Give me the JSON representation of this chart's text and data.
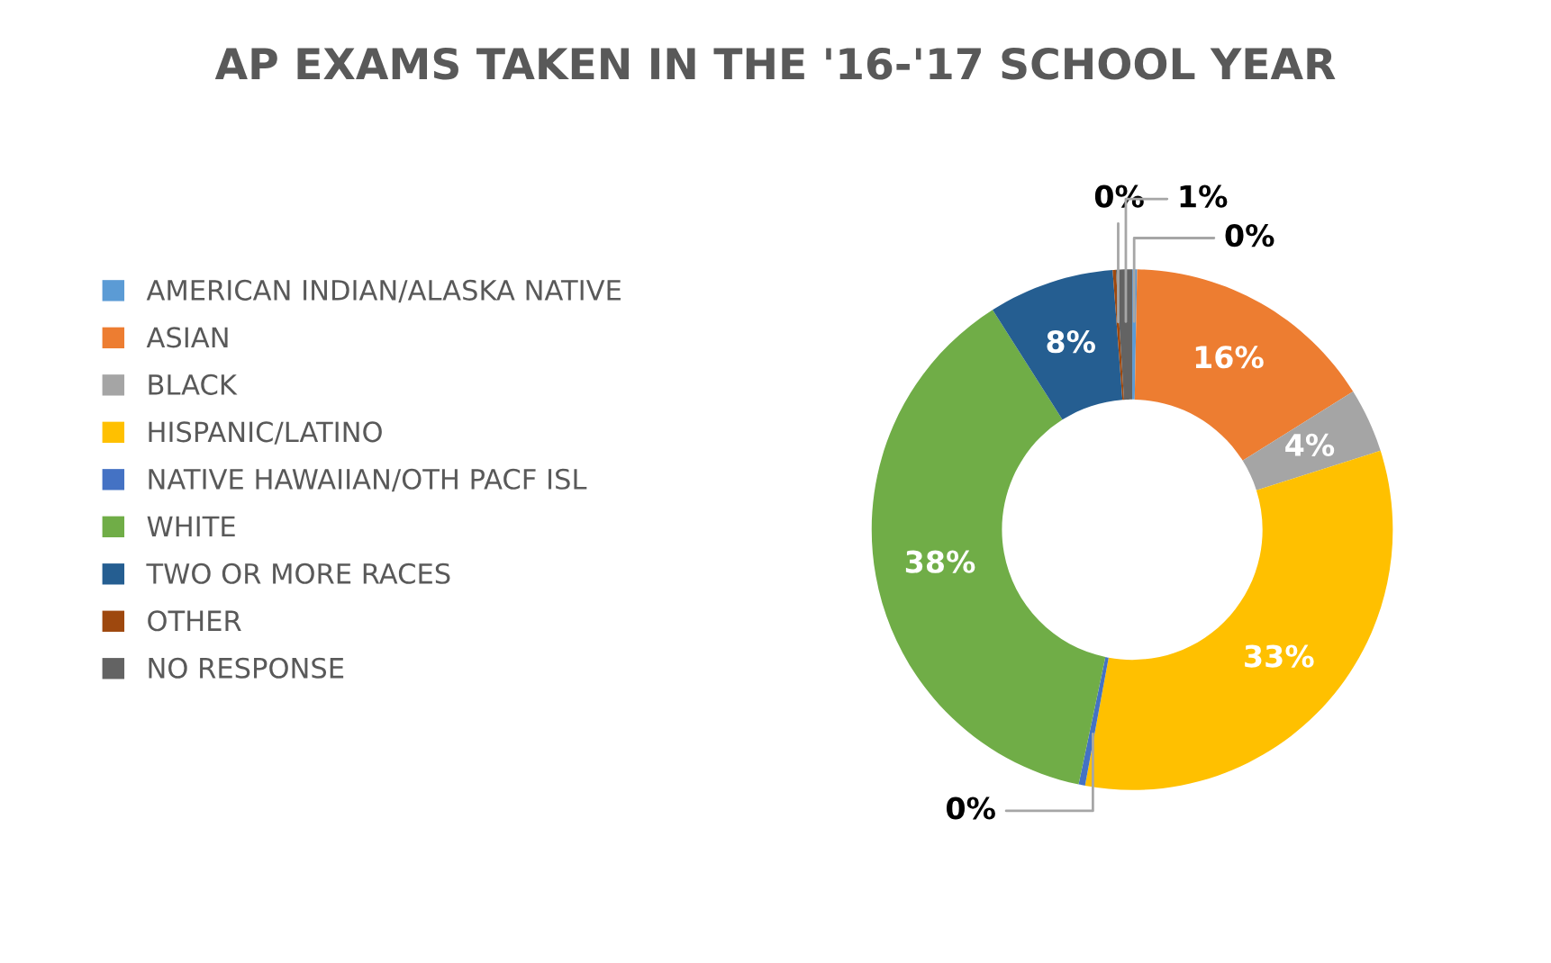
{
  "chart_data": {
    "type": "donut",
    "title": "AP EXAMS TAKEN IN THE '16-'17 SCHOOL YEAR",
    "categories": [
      "AMERICAN INDIAN/ALASKA NATIVE",
      "ASIAN",
      "BLACK",
      "HISPANIC/LATINO",
      "NATIVE HAWAIIAN/OTH PACF ISL",
      "WHITE",
      "TWO OR MORE RACES",
      "OTHER",
      "NO RESPONSE"
    ],
    "values": [
      0.3,
      15.8,
      4,
      32.8,
      0.4,
      37.7,
      7.8,
      0.2,
      1.0
    ],
    "value_labels": [
      "0%",
      "16%",
      "4%",
      "33%",
      "0%",
      "38%",
      "8%",
      "0%",
      "1%"
    ],
    "colors": [
      "#5b9bd5",
      "#ed7d31",
      "#a5a5a5",
      "#ffc000",
      "#4472c4",
      "#70ad47",
      "#255e91",
      "#9e480e",
      "#636363"
    ],
    "legend": "left"
  }
}
